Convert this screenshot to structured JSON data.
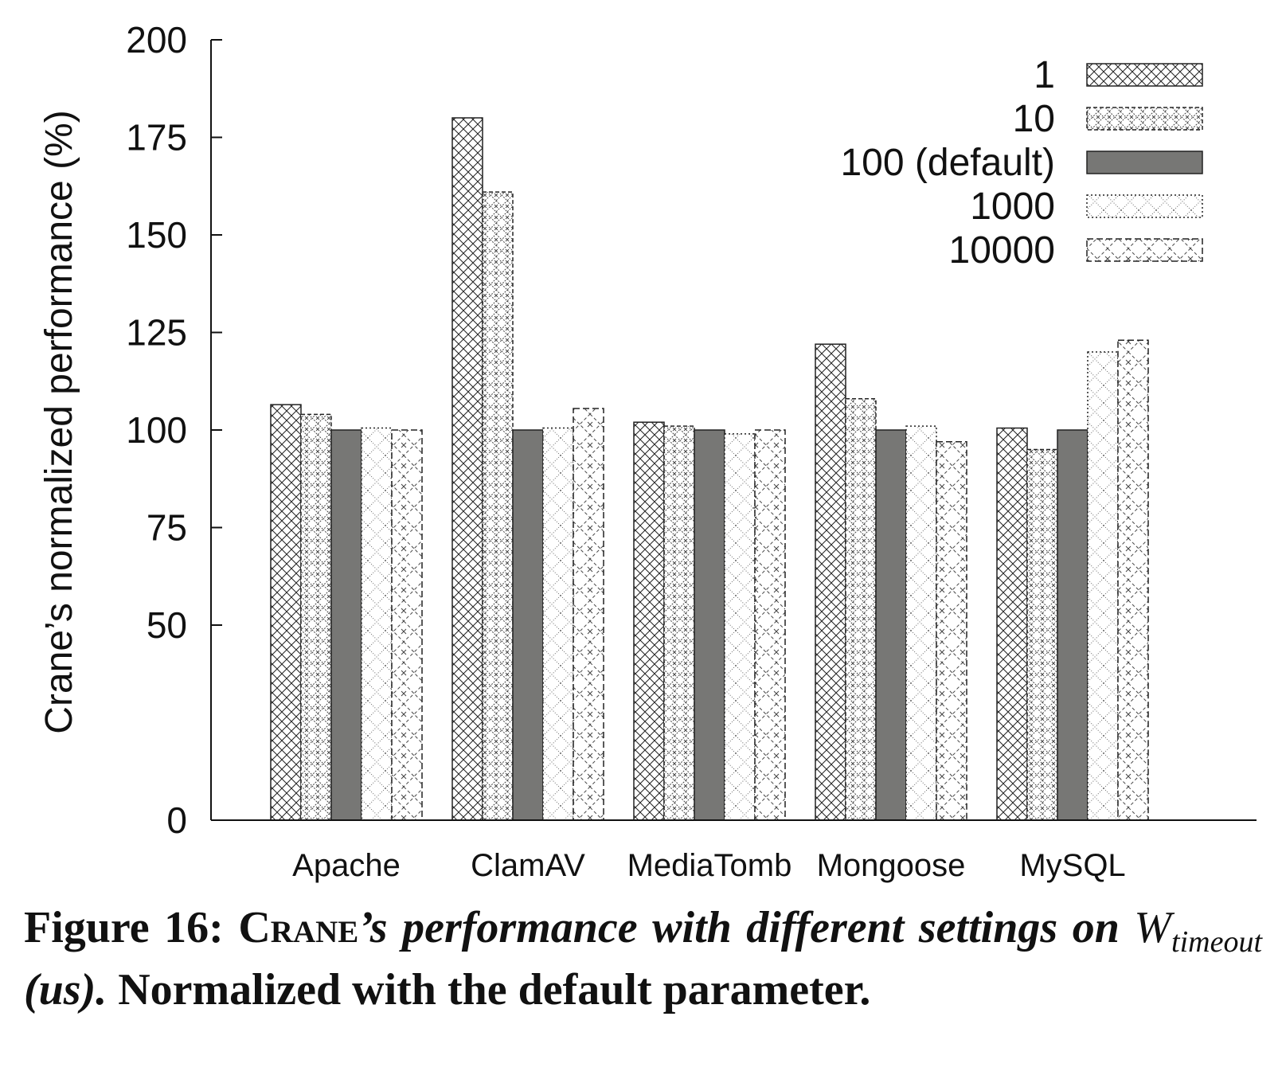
{
  "chart_data": {
    "type": "bar",
    "title": "",
    "xlabel": "",
    "ylabel": "Crane’s normalized performance (%)",
    "ylim": [
      0,
      200
    ],
    "yticks": [
      "0",
      "50",
      "75",
      "100",
      "125",
      "150",
      "175",
      "200"
    ],
    "categories": [
      "Apache",
      "ClamAV",
      "MediaTomb",
      "Mongoose",
      "MySQL"
    ],
    "series": [
      {
        "name": "1",
        "values": [
          106.5,
          180,
          102,
          122,
          100.5
        ],
        "pattern": "crosshatch",
        "fill": "#ffffff"
      },
      {
        "name": "10",
        "values": [
          104,
          161,
          101,
          108,
          95
        ],
        "pattern": "diamond-x-dense",
        "fill": "#ffffff"
      },
      {
        "name": "100 (default)",
        "values": [
          100,
          100,
          100,
          100,
          100
        ],
        "pattern": "solid",
        "fill": "#777775"
      },
      {
        "name": "1000",
        "values": [
          100.5,
          100.5,
          99,
          101,
          120
        ],
        "pattern": "dotted-diamond",
        "fill": "#ffffff"
      },
      {
        "name": "10000",
        "values": [
          100,
          105.5,
          100,
          97,
          123
        ],
        "pattern": "dashed-diamond-x",
        "fill": "#ffffff"
      }
    ],
    "legend_position": "top-right",
    "grid": false
  },
  "caption": {
    "figure_label": "Figure 16:",
    "system_name": "Crane",
    "title_rest": "’s performance with different settings on",
    "symbol": "W",
    "subscript": "timeout",
    "unit": "(us).",
    "note": "Normalized with the default parameter."
  }
}
